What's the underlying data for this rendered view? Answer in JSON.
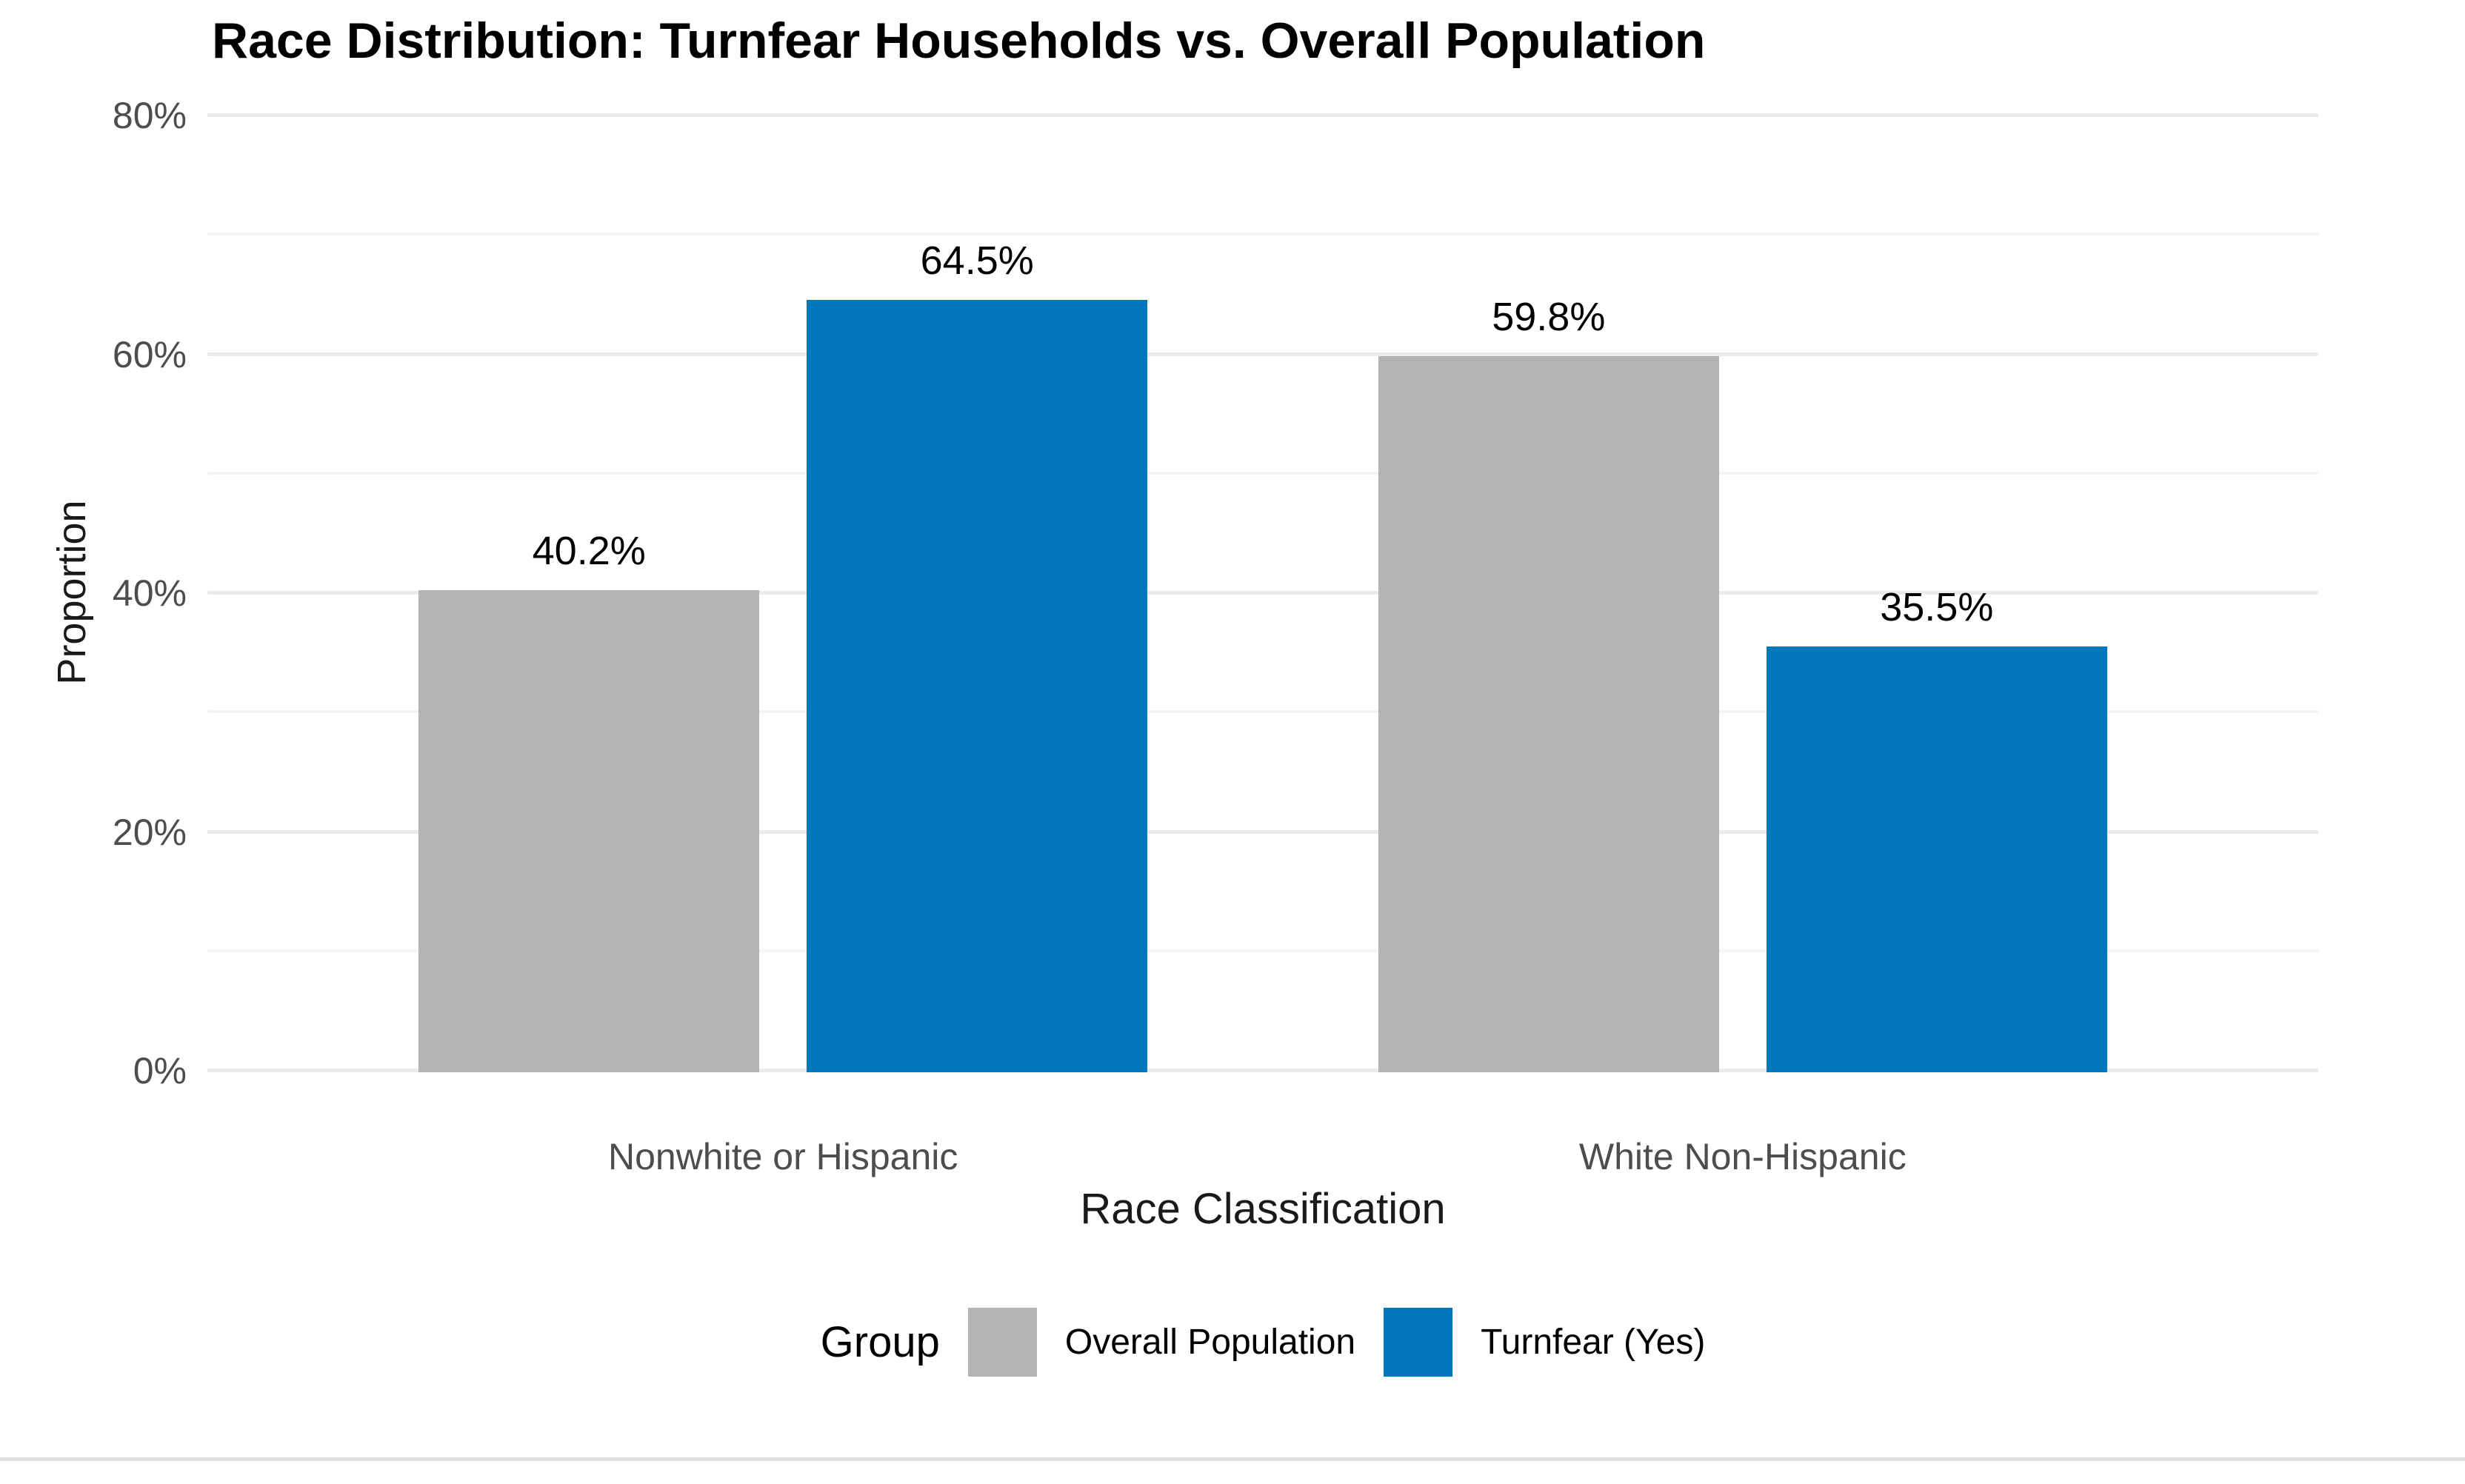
{
  "title": "Race Distribution: Turnfear Households vs. Overall Population",
  "axes": {
    "y_title": "Proportion",
    "x_title": "Race Classification",
    "y_ticks": [
      {
        "value": 80,
        "label": "80%"
      },
      {
        "value": 60,
        "label": "60%"
      },
      {
        "value": 40,
        "label": "40%"
      },
      {
        "value": 20,
        "label": "20%"
      },
      {
        "value": 0,
        "label": "0%"
      }
    ]
  },
  "legend": {
    "title": "Group",
    "items": [
      {
        "label": "Overall Population",
        "color": "#B3B3B3"
      },
      {
        "label": "Turnfear (Yes)",
        "color": "#0077BB"
      }
    ]
  },
  "colors": {
    "overall_population": "#B3B3B3",
    "turnfear_yes": "#0077BB",
    "grid_major": "#EBEBEB",
    "grid_minor": "#F4F4F4",
    "tick_text": "#4D4D4D",
    "text": "#000000"
  },
  "chart_data": {
    "type": "bar",
    "title": "Race Distribution: Turnfear Households vs. Overall Population",
    "xlabel": "Race Classification",
    "ylabel": "Proportion",
    "categories": [
      "Nonwhite or Hispanic",
      "White Non-Hispanic"
    ],
    "series": [
      {
        "name": "Overall Population",
        "color": "#B3B3B3",
        "values": [
          40.2,
          59.8
        ],
        "labels": [
          "40.2%",
          "59.8%"
        ]
      },
      {
        "name": "Turnfear (Yes)",
        "color": "#0077BB",
        "values": [
          64.5,
          35.5
        ],
        "labels": [
          "64.5%",
          "35.5%"
        ]
      }
    ],
    "ylim": [
      0,
      80
    ],
    "y_tick_step": 20,
    "y_minor_grid_step": 10,
    "grid": true,
    "legend_position": "bottom",
    "bar_value_labels_shown": true
  }
}
